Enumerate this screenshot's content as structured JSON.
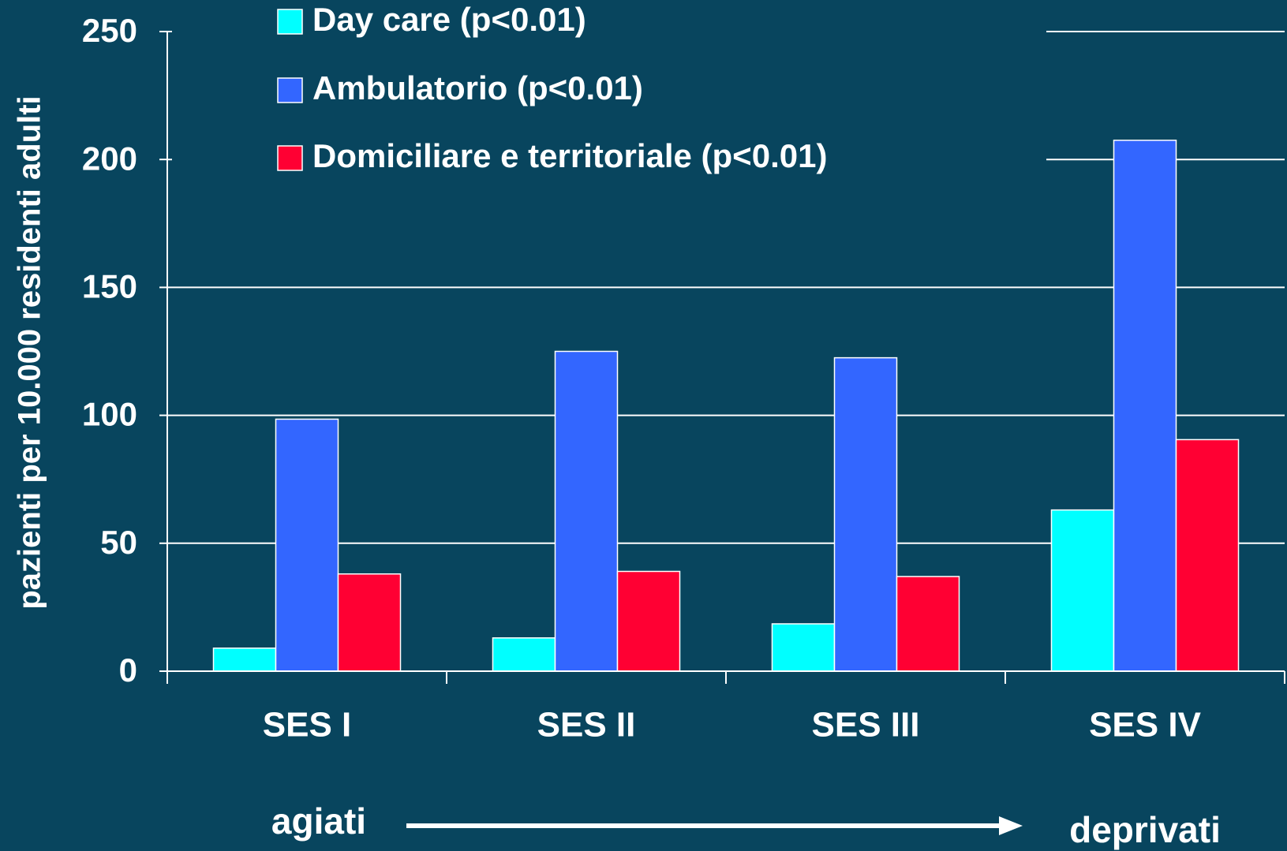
{
  "chart_data": {
    "type": "bar",
    "y_label": "pazienti per 10.000 residenti adulti",
    "categories": [
      "SES I",
      "SES II",
      "SES III",
      "SES IV"
    ],
    "series": [
      {
        "name": "Day care (p<0.01)",
        "color": "#00ffff",
        "values": [
          9,
          13,
          18.5,
          63
        ]
      },
      {
        "name": "Ambulatorio (p<0.01)",
        "color": "#3366ff",
        "values": [
          98.5,
          125,
          122.5,
          207.5
        ]
      },
      {
        "name": "Domiciliare e territoriale (p<0.01)",
        "color": "#ff0033",
        "values": [
          38,
          39,
          37,
          90.5
        ]
      }
    ],
    "ylim": [
      0,
      250
    ],
    "yticks": [
      0,
      50,
      100,
      150,
      200,
      250
    ],
    "grid": true,
    "legend": "top",
    "annotations": [
      "agiati",
      "deprivati"
    ]
  }
}
